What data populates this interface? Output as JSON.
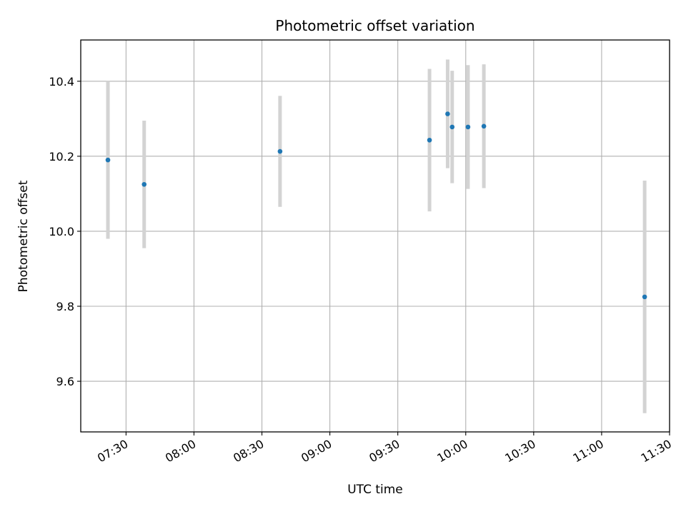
{
  "chart_data": {
    "type": "scatter",
    "title": "Photometric offset variation",
    "xlabel": "UTC time",
    "ylabel": "Photometric offset",
    "x_ticks": [
      "07:30",
      "08:00",
      "08:30",
      "09:00",
      "09:30",
      "10:00",
      "10:30",
      "11:00",
      "11:30"
    ],
    "y_ticks": [
      "9.6",
      "9.8",
      "10.0",
      "10.2",
      "10.4"
    ],
    "xlim": [
      "07:10",
      "11:30"
    ],
    "ylim": [
      9.465,
      10.51
    ],
    "grid": true,
    "errorbar_color": "#d3d3d3",
    "marker_color": "#1f77b4",
    "points": [
      {
        "time": "07:22",
        "value": 10.19,
        "error": 0.21
      },
      {
        "time": "07:38",
        "value": 10.125,
        "error": 0.17
      },
      {
        "time": "08:38",
        "value": 10.213,
        "error": 0.148
      },
      {
        "time": "09:44",
        "value": 10.243,
        "error": 0.19
      },
      {
        "time": "09:52",
        "value": 10.313,
        "error": 0.145
      },
      {
        "time": "09:54",
        "value": 10.278,
        "error": 0.15
      },
      {
        "time": "10:01",
        "value": 10.278,
        "error": 0.165
      },
      {
        "time": "10:08",
        "value": 10.28,
        "error": 0.165
      },
      {
        "time": "11:19",
        "value": 9.825,
        "error": 0.31
      }
    ]
  }
}
